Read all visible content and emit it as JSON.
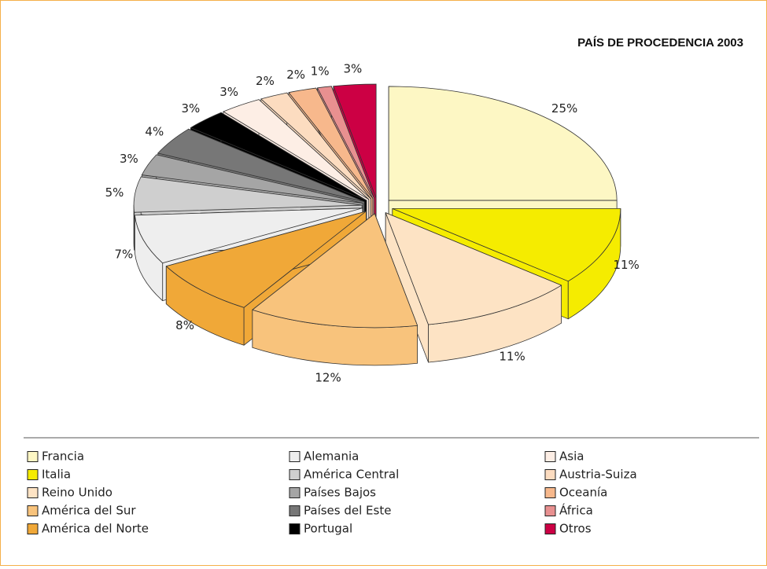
{
  "chart_data": {
    "type": "pie3d",
    "title": "PAÍS DE PROCEDENCIA 2003",
    "categories": [
      "Francia",
      "Italia",
      "Reino Unido",
      "América del Sur",
      "América del Norte",
      "Alemania",
      "América Central",
      "Países Bajos",
      "Países del Este",
      "Portugal",
      "Asia",
      "Austria-Suiza",
      "Oceanía",
      "África",
      "Otros"
    ],
    "values": [
      25,
      11,
      11,
      12,
      8,
      7,
      5,
      3,
      4,
      3,
      3,
      2,
      2,
      1,
      3
    ],
    "value_labels": [
      "25%",
      "11%",
      "11%",
      "12%",
      "8%",
      "7%",
      "5%",
      "3%",
      "4%",
      "3%",
      "3%",
      "2%",
      "2%",
      "1%",
      "3%"
    ],
    "colors": [
      "#fdf7c4",
      "#f5ec00",
      "#fde3c4",
      "#f8c37c",
      "#f0a838",
      "#eeeeee",
      "#cfcfcf",
      "#a5a5a5",
      "#777777",
      "#000000",
      "#fdeee5",
      "#fcdcc0",
      "#f7b88c",
      "#e89090",
      "#cc0044"
    ],
    "legend": "bottom"
  }
}
